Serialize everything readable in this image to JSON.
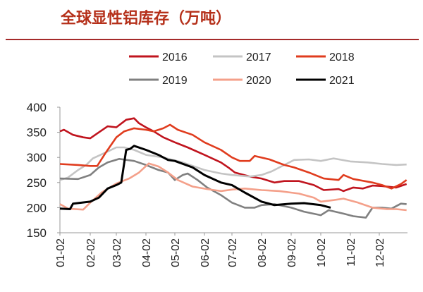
{
  "chart_data": {
    "type": "line",
    "title": "全球显性铝库存（万吨）",
    "ylim": [
      150,
      400
    ],
    "yticks": [
      150,
      200,
      250,
      300,
      350,
      400
    ],
    "xticks": [
      "01-02",
      "02-02",
      "03-02",
      "04-02",
      "05-02",
      "06-02",
      "07-02",
      "08-02",
      "09-02",
      "10-02",
      "11-02",
      "12-02"
    ],
    "legend": "top",
    "grid": false,
    "series": [
      {
        "name": "2016",
        "color": "#c0141e",
        "points": [
          [
            "01-02",
            352
          ],
          [
            "01-06",
            355
          ],
          [
            "01-15",
            345
          ],
          [
            "01-25",
            340
          ],
          [
            "02-02",
            338
          ],
          [
            "02-12",
            350
          ],
          [
            "02-22",
            362
          ],
          [
            "03-02",
            360
          ],
          [
            "03-12",
            375
          ],
          [
            "03-20",
            378
          ],
          [
            "03-25",
            368
          ],
          [
            "04-02",
            360
          ],
          [
            "04-10",
            352
          ],
          [
            "04-20",
            340
          ],
          [
            "05-02",
            330
          ],
          [
            "05-15",
            320
          ],
          [
            "06-02",
            305
          ],
          [
            "06-20",
            290
          ],
          [
            "06-28",
            280
          ],
          [
            "07-05",
            270
          ],
          [
            "07-20",
            262
          ],
          [
            "08-02",
            258
          ],
          [
            "08-15",
            250
          ],
          [
            "08-25",
            253
          ],
          [
            "09-10",
            253
          ],
          [
            "09-25",
            245
          ],
          [
            "10-05",
            235
          ],
          [
            "10-20",
            237
          ],
          [
            "10-25",
            233
          ],
          [
            "11-05",
            240
          ],
          [
            "11-15",
            238
          ],
          [
            "11-25",
            244
          ],
          [
            "12-05",
            243
          ],
          [
            "12-20",
            240
          ],
          [
            "12-31",
            247
          ]
        ]
      },
      {
        "name": "2017",
        "color": "#c4c4c4",
        "points": [
          [
            "01-02",
            255
          ],
          [
            "01-10",
            260
          ],
          [
            "01-20",
            275
          ],
          [
            "01-28",
            285
          ],
          [
            "02-05",
            298
          ],
          [
            "02-20",
            310
          ],
          [
            "03-02",
            320
          ],
          [
            "03-10",
            320
          ],
          [
            "03-20",
            315
          ],
          [
            "04-02",
            305
          ],
          [
            "04-20",
            300
          ],
          [
            "05-10",
            290
          ],
          [
            "06-02",
            275
          ],
          [
            "06-20",
            268
          ],
          [
            "07-02",
            265
          ],
          [
            "07-20",
            262
          ],
          [
            "08-02",
            265
          ],
          [
            "08-12",
            272
          ],
          [
            "08-25",
            285
          ],
          [
            "09-05",
            295
          ],
          [
            "09-20",
            296
          ],
          [
            "10-02",
            293
          ],
          [
            "10-15",
            298
          ],
          [
            "11-02",
            292
          ],
          [
            "11-20",
            290
          ],
          [
            "12-05",
            287
          ],
          [
            "12-20",
            285
          ],
          [
            "12-31",
            286
          ]
        ]
      },
      {
        "name": "2018",
        "color": "#e03c1e",
        "points": [
          [
            "01-02",
            287
          ],
          [
            "01-20",
            285
          ],
          [
            "02-02",
            283
          ],
          [
            "02-10",
            283
          ],
          [
            "02-20",
            310
          ],
          [
            "03-02",
            340
          ],
          [
            "03-10",
            352
          ],
          [
            "03-20",
            358
          ],
          [
            "04-02",
            355
          ],
          [
            "04-10",
            352
          ],
          [
            "04-20",
            358
          ],
          [
            "04-27",
            365
          ],
          [
            "05-05",
            355
          ],
          [
            "05-20",
            345
          ],
          [
            "06-02",
            330
          ],
          [
            "06-20",
            315
          ],
          [
            "07-02",
            300
          ],
          [
            "07-10",
            293
          ],
          [
            "07-20",
            293
          ],
          [
            "07-25",
            303
          ],
          [
            "08-10",
            296
          ],
          [
            "08-25",
            285
          ],
          [
            "09-05",
            280
          ],
          [
            "09-20",
            270
          ],
          [
            "10-05",
            258
          ],
          [
            "10-20",
            255
          ],
          [
            "10-25",
            265
          ],
          [
            "11-05",
            257
          ],
          [
            "11-25",
            250
          ],
          [
            "12-05",
            245
          ],
          [
            "12-15",
            238
          ],
          [
            "12-25",
            247
          ],
          [
            "12-31",
            255
          ]
        ]
      },
      {
        "name": "2019",
        "color": "#808080",
        "points": [
          [
            "01-02",
            258
          ],
          [
            "01-20",
            257
          ],
          [
            "02-02",
            265
          ],
          [
            "02-12",
            280
          ],
          [
            "02-22",
            290
          ],
          [
            "03-05",
            297
          ],
          [
            "03-20",
            293
          ],
          [
            "04-02",
            285
          ],
          [
            "04-15",
            275
          ],
          [
            "04-25",
            270
          ],
          [
            "05-02",
            255
          ],
          [
            "05-10",
            265
          ],
          [
            "05-15",
            268
          ],
          [
            "05-25",
            255
          ],
          [
            "06-05",
            240
          ],
          [
            "06-20",
            225
          ],
          [
            "07-02",
            210
          ],
          [
            "07-15",
            200
          ],
          [
            "07-25",
            200
          ],
          [
            "08-02",
            205
          ],
          [
            "08-15",
            207
          ],
          [
            "09-02",
            200
          ],
          [
            "09-15",
            192
          ],
          [
            "10-02",
            185
          ],
          [
            "10-10",
            195
          ],
          [
            "10-25",
            188
          ],
          [
            "11-05",
            183
          ],
          [
            "11-18",
            180
          ],
          [
            "11-25",
            200
          ],
          [
            "12-05",
            200
          ],
          [
            "12-15",
            198
          ],
          [
            "12-25",
            208
          ],
          [
            "12-31",
            207
          ]
        ]
      },
      {
        "name": "2020",
        "color": "#f4a08a",
        "points": [
          [
            "01-02",
            207
          ],
          [
            "01-10",
            198
          ],
          [
            "01-25",
            196
          ],
          [
            "02-02",
            210
          ],
          [
            "02-15",
            230
          ],
          [
            "03-02",
            248
          ],
          [
            "03-15",
            258
          ],
          [
            "03-25",
            270
          ],
          [
            "04-05",
            288
          ],
          [
            "04-15",
            282
          ],
          [
            "04-25",
            270
          ],
          [
            "05-05",
            255
          ],
          [
            "05-20",
            242
          ],
          [
            "06-05",
            237
          ],
          [
            "06-20",
            233
          ],
          [
            "07-02",
            236
          ],
          [
            "07-15",
            238
          ],
          [
            "08-02",
            235
          ],
          [
            "08-20",
            233
          ],
          [
            "09-10",
            228
          ],
          [
            "09-25",
            220
          ],
          [
            "10-02",
            212
          ],
          [
            "10-15",
            215
          ],
          [
            "10-25",
            218
          ],
          [
            "11-10",
            210
          ],
          [
            "11-25",
            200
          ],
          [
            "12-10",
            197
          ],
          [
            "12-20",
            197
          ],
          [
            "12-31",
            195
          ]
        ]
      },
      {
        "name": "2021",
        "color": "#000000",
        "points": [
          [
            "01-02",
            198
          ],
          [
            "01-12",
            197
          ],
          [
            "01-15",
            208
          ],
          [
            "02-02",
            212
          ],
          [
            "02-12",
            220
          ],
          [
            "02-22",
            238
          ],
          [
            "03-02",
            245
          ],
          [
            "03-07",
            250
          ],
          [
            "03-12",
            315
          ],
          [
            "03-16",
            317
          ],
          [
            "03-20",
            323
          ],
          [
            "04-02",
            315
          ],
          [
            "04-15",
            305
          ],
          [
            "04-25",
            295
          ],
          [
            "05-02",
            293
          ],
          [
            "05-20",
            280
          ],
          [
            "06-02",
            265
          ],
          [
            "06-20",
            250
          ],
          [
            "07-02",
            245
          ],
          [
            "07-15",
            230
          ],
          [
            "08-02",
            212
          ],
          [
            "08-15",
            205
          ],
          [
            "09-02",
            208
          ],
          [
            "09-15",
            209
          ],
          [
            "10-02",
            205
          ],
          [
            "10-12",
            200
          ]
        ]
      }
    ]
  }
}
